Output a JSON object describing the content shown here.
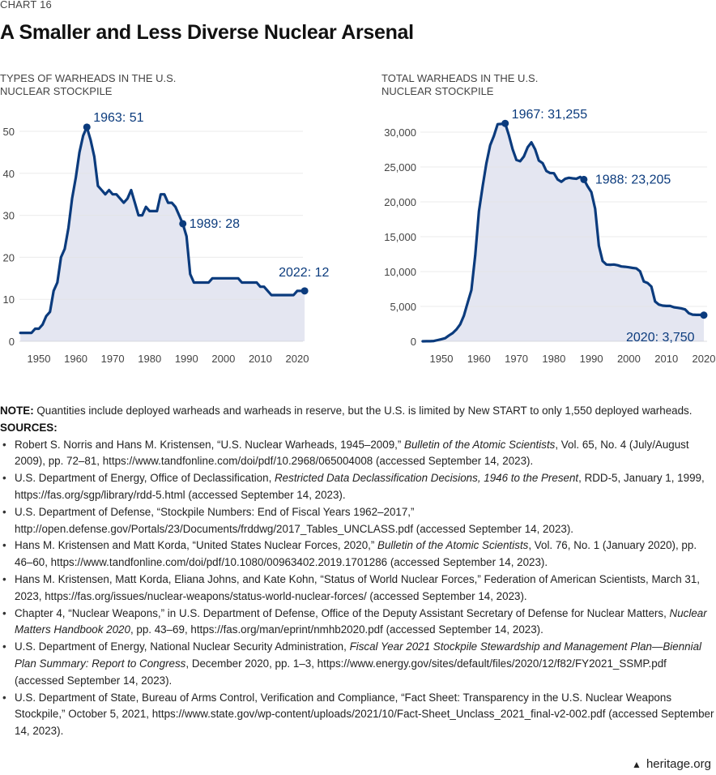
{
  "header": {
    "chart_number": "CHART 16",
    "title": "A Smaller and Less Diverse Nuclear Arsenal"
  },
  "colors": {
    "line": "#0b3b7d",
    "fill": "#e4e6f1",
    "grid": "#e2e2e2"
  },
  "chart_data": [
    {
      "type": "area",
      "title": "TYPES OF WARHEADS IN THE U.S. NUCLEAR STOCKPILE",
      "xlabel": "",
      "ylabel": "",
      "xlim": [
        1945,
        2022
      ],
      "ylim": [
        0,
        55
      ],
      "x_ticks": [
        1950,
        1960,
        1970,
        1980,
        1990,
        2000,
        2010,
        2020
      ],
      "y_ticks": [
        0,
        10,
        20,
        30,
        40,
        50
      ],
      "grid": true,
      "x": [
        1945,
        1946,
        1947,
        1948,
        1949,
        1950,
        1951,
        1952,
        1953,
        1954,
        1955,
        1956,
        1957,
        1958,
        1959,
        1960,
        1961,
        1962,
        1963,
        1964,
        1965,
        1966,
        1967,
        1968,
        1969,
        1970,
        1971,
        1972,
        1973,
        1974,
        1975,
        1976,
        1977,
        1978,
        1979,
        1980,
        1981,
        1982,
        1983,
        1984,
        1985,
        1986,
        1987,
        1988,
        1989,
        1990,
        1991,
        1992,
        1993,
        1994,
        1995,
        1996,
        1997,
        1998,
        1999,
        2000,
        2001,
        2002,
        2003,
        2004,
        2005,
        2006,
        2007,
        2008,
        2009,
        2010,
        2011,
        2012,
        2013,
        2014,
        2015,
        2016,
        2017,
        2018,
        2019,
        2020,
        2021,
        2022
      ],
      "values": [
        2,
        2,
        2,
        2,
        3,
        3,
        4,
        6,
        7,
        12,
        14,
        20,
        22,
        27,
        34,
        39,
        45,
        49,
        51,
        48,
        44,
        37,
        36,
        35,
        36,
        35,
        35,
        34,
        33,
        34,
        36,
        33,
        30,
        30,
        32,
        31,
        31,
        31,
        35,
        35,
        33,
        33,
        32,
        30,
        28,
        25,
        16,
        14,
        14,
        14,
        14,
        14,
        15,
        15,
        15,
        15,
        15,
        15,
        15,
        15,
        14,
        14,
        14,
        14,
        14,
        13,
        13,
        12,
        11,
        11,
        11,
        11,
        11,
        11,
        11,
        12,
        12,
        12
      ],
      "annotations": [
        {
          "x": 1963,
          "y": 51,
          "text": "1963: 51"
        },
        {
          "x": 1989,
          "y": 28,
          "text": "1989: 28"
        },
        {
          "x": 2022,
          "y": 12,
          "text": "2022: 12"
        }
      ]
    },
    {
      "type": "area",
      "title": "TOTAL WARHEADS IN THE U.S. NUCLEAR STOCKPILE",
      "xlabel": "",
      "ylabel": "",
      "xlim": [
        1945,
        2020
      ],
      "ylim": [
        0,
        32000
      ],
      "x_ticks": [
        1950,
        1960,
        1970,
        1980,
        1990,
        2000,
        2010,
        2020
      ],
      "y_ticks": [
        0,
        5000,
        10000,
        15000,
        20000,
        25000,
        30000
      ],
      "y_tick_labels": [
        "0",
        "5,000",
        "10,000",
        "15,000",
        "20,000",
        "25,000",
        "30,000"
      ],
      "grid": true,
      "x": [
        1945,
        1946,
        1947,
        1948,
        1949,
        1950,
        1951,
        1952,
        1953,
        1954,
        1955,
        1956,
        1957,
        1958,
        1959,
        1960,
        1961,
        1962,
        1963,
        1964,
        1965,
        1966,
        1967,
        1968,
        1969,
        1970,
        1971,
        1972,
        1973,
        1974,
        1975,
        1976,
        1977,
        1978,
        1979,
        1980,
        1981,
        1982,
        1983,
        1984,
        1985,
        1986,
        1987,
        1988,
        1989,
        1990,
        1991,
        1992,
        1993,
        1994,
        1995,
        1996,
        1997,
        1998,
        1999,
        2000,
        2001,
        2002,
        2003,
        2004,
        2005,
        2006,
        2007,
        2008,
        2009,
        2010,
        2011,
        2012,
        2013,
        2014,
        2015,
        2016,
        2017,
        2018,
        2019,
        2020
      ],
      "values": [
        2,
        9,
        13,
        50,
        170,
        299,
        438,
        841,
        1169,
        1703,
        2422,
        3692,
        5543,
        7345,
        12298,
        18638,
        22229,
        25540,
        28133,
        29463,
        31139,
        31175,
        31255,
        29561,
        27552,
        26008,
        25830,
        26516,
        27835,
        28537,
        27519,
        25914,
        25542,
        24418,
        24138,
        24104,
        23208,
        22886,
        23305,
        23459,
        23368,
        23317,
        23575,
        23205,
        22217,
        21392,
        19008,
        13708,
        11511,
        11008,
        10979,
        11011,
        10903,
        10732,
        10685,
        10615,
        10526,
        10457,
        10027,
        8570,
        8360,
        7853,
        5709,
        5273,
        5113,
        5066,
        5066,
        4881,
        4804,
        4717,
        4571,
        4018,
        3822,
        3785,
        3805,
        3750
      ],
      "annotations": [
        {
          "x": 1967,
          "y": 31255,
          "text": "1967: 31,255"
        },
        {
          "x": 1988,
          "y": 23205,
          "text": "1988: 23,205"
        },
        {
          "x": 2020,
          "y": 3750,
          "text": "2020: 3,750"
        }
      ]
    }
  ],
  "notes": {
    "note_label": "NOTE:",
    "note_text": " Quantities include deployed warheads and warheads in reserve, but the U.S. is limited by New START to only 1,550 deployed warheads.",
    "sources_label": "SOURCES:",
    "sources": [
      {
        "pre": "Robert S. Norris and Hans M. Kristensen, “U.S. Nuclear Warheads, 1945–2009,” ",
        "ital": "Bulletin of the Atomic Scientists",
        "post": ", Vol. 65, No. 4 (July/August 2009), pp. 72–81, https://www.tandfonline.com/doi/pdf/10.2968/065004008 (accessed September 14, 2023)."
      },
      {
        "pre": "U.S. Department of Energy, Office of Declassification, ",
        "ital": "Restricted Data Declassification Decisions, 1946 to the Present",
        "post": ", RDD-5, January 1, 1999, https://fas.org/sgp/library/rdd-5.html (accessed September 14, 2023)."
      },
      {
        "pre": "U.S. Department of Defense, “Stockpile Numbers: End of Fiscal Years 1962–2017,” http://open.defense.gov/Portals/23/Documents/frddwg/2017_Tables_UNCLASS.pdf (accessed September 14, 2023).",
        "ital": "",
        "post": ""
      },
      {
        "pre": "Hans M. Kristensen and Matt Korda, “United States Nuclear Forces, 2020,” ",
        "ital": "Bulletin of the Atomic Scientists",
        "post": ", Vol. 76, No. 1 (January 2020), pp. 46–60, https://www.tandfonline.com/doi/pdf/10.1080/00963402.2019.1701286 (accessed September 14, 2023)."
      },
      {
        "pre": "Hans M. Kristensen, Matt Korda, Eliana Johns, and Kate Kohn, “Status of World Nuclear Forces,” Federation of American Scientists, March 31, 2023, https://fas.org/issues/nuclear-weapons/status-world-nuclear-forces/ (accessed September 14, 2023).",
        "ital": "",
        "post": ""
      },
      {
        "pre": "Chapter 4, “Nuclear Weapons,” in U.S. Department of Defense, Office of the Deputy Assistant Secretary of Defense for Nuclear Matters, ",
        "ital": "Nuclear Matters Handbook 2020",
        "post": ", pp. 43–69, https://fas.org/man/eprint/nmhb2020.pdf (accessed September 14, 2023)."
      },
      {
        "pre": "U.S. Department of Energy, National Nuclear Security Administration, ",
        "ital": "Fiscal Year 2021 Stockpile Stewardship and Management Plan—Biennial Plan Summary: Report to Congress",
        "post": ", December 2020, pp. 1–3, https://www.energy.gov/sites/default/files/2020/12/f82/FY2021_SSMP.pdf (accessed September 14, 2023)."
      },
      {
        "pre": "U.S. Department of State, Bureau of Arms Control, Verification and Compliance, “Fact Sheet: Transparency in the U.S. Nuclear Weapons Stockpile,” October 5, 2021, https://www.state.gov/wp-content/uploads/2021/10/Fact-Sheet_Unclass_2021_final-v2-002.pdf (accessed September 14, 2023).",
        "ital": "",
        "post": ""
      }
    ]
  },
  "footer": {
    "icon": "liberty-bell-icon",
    "site": "heritage.org"
  }
}
